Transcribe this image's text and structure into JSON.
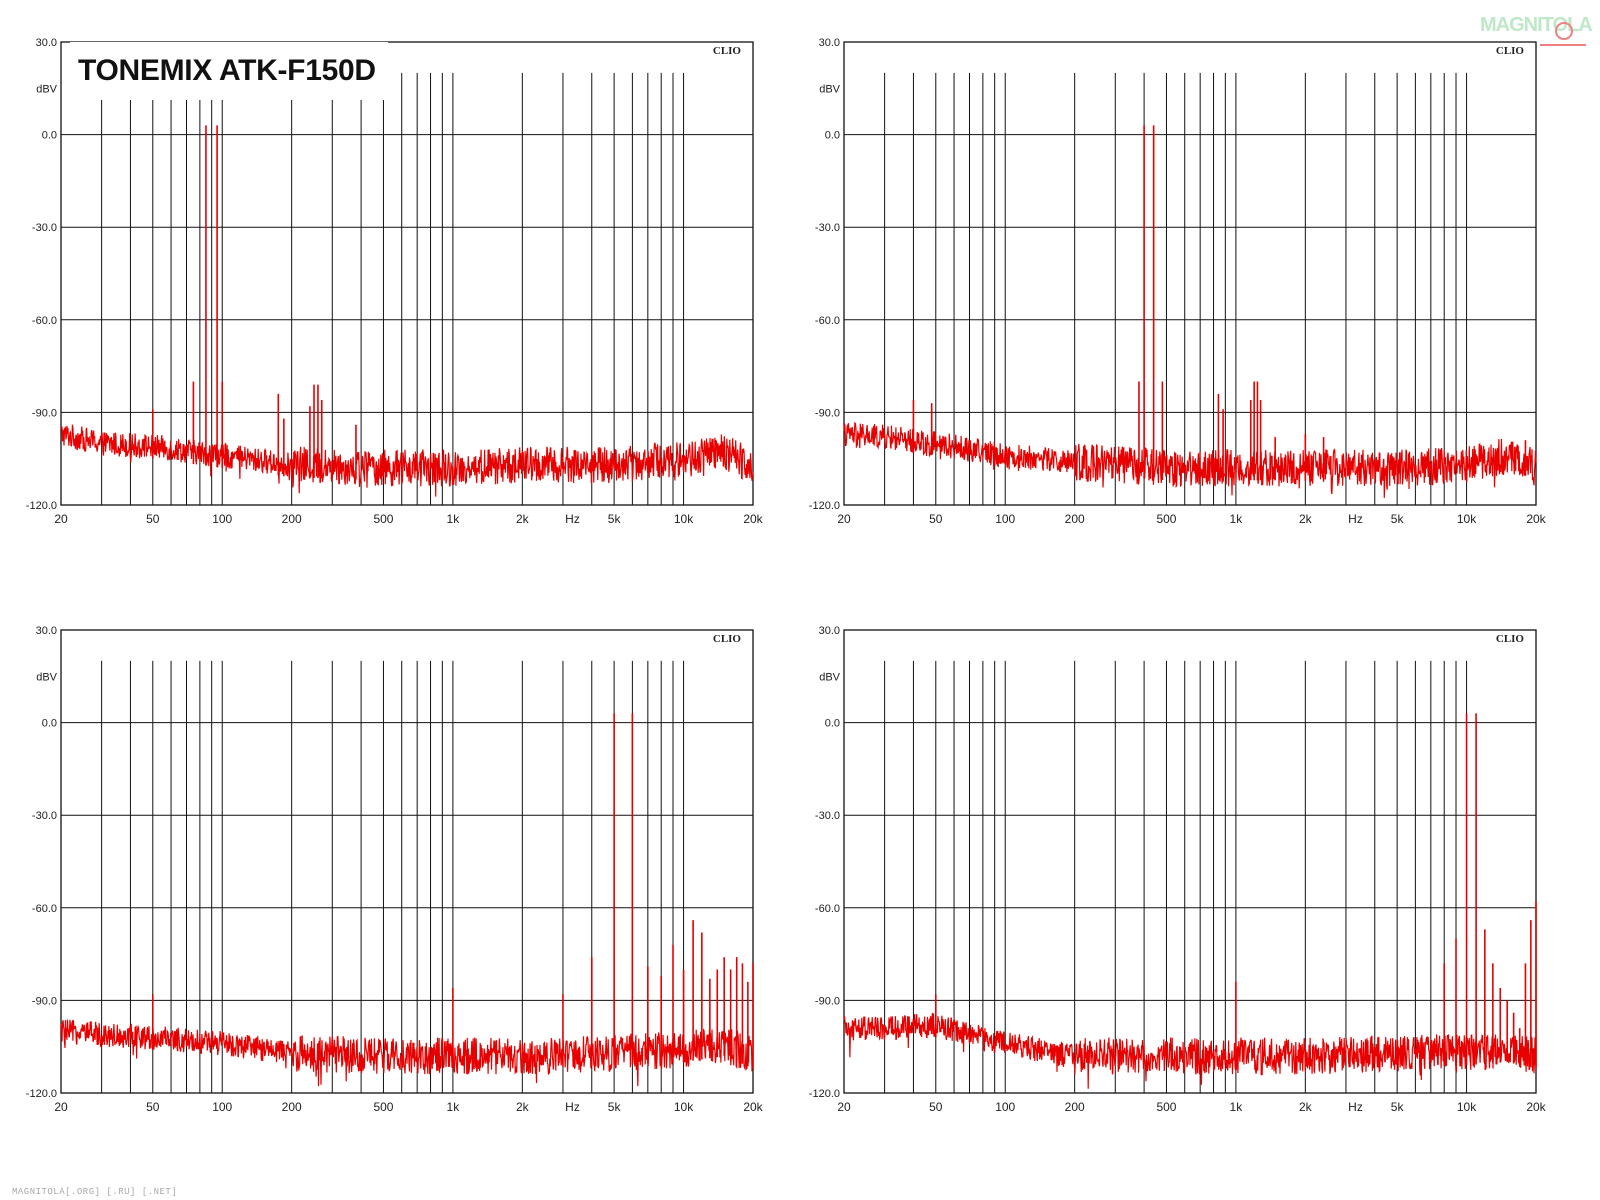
{
  "page": {
    "title": "TONEMIX ATK-F150D",
    "watermark": "MAGNITOLA",
    "footer": "MAGNITOLA[.ORG] [.RU] [.NET]"
  },
  "colors": {
    "trace": "#e80000",
    "grid": "#111111",
    "background": "#ffffff",
    "text": "#222222"
  },
  "chart_data": [
    {
      "type": "line",
      "panel": "top-left",
      "brand": "CLIO",
      "ylabel": "dBV",
      "xlabel": "Hz",
      "x_scale": "log",
      "xlim": [
        20,
        20000
      ],
      "ylim": [
        -120,
        30
      ],
      "y_ticks": [
        30,
        0,
        -30,
        -60,
        -90,
        -120
      ],
      "y_tick_labels": [
        "30.0",
        "0.0",
        "-30.0",
        "-60.0",
        "-90.0",
        "-120.0"
      ],
      "x_tick_labels": [
        "20",
        "50",
        "100",
        "200",
        "500",
        "1k",
        "2k",
        "Hz",
        "5k",
        "10k",
        "20k"
      ],
      "grid": true,
      "noise_floor": [
        [
          20,
          -97
        ],
        [
          30,
          -100
        ],
        [
          50,
          -101
        ],
        [
          100,
          -104
        ],
        [
          200,
          -107
        ],
        [
          500,
          -108
        ],
        [
          1000,
          -108
        ],
        [
          2000,
          -107
        ],
        [
          5000,
          -107
        ],
        [
          10000,
          -105
        ],
        [
          15000,
          -103
        ],
        [
          20000,
          -107
        ]
      ],
      "peaks": [
        [
          50,
          -89
        ],
        [
          75,
          -80
        ],
        [
          85,
          3
        ],
        [
          95,
          3
        ],
        [
          100,
          -80
        ],
        [
          175,
          -84
        ],
        [
          185,
          -92
        ],
        [
          240,
          -88
        ],
        [
          250,
          -81
        ],
        [
          260,
          -81
        ],
        [
          270,
          -86
        ],
        [
          380,
          -94
        ]
      ]
    },
    {
      "type": "line",
      "panel": "top-right",
      "brand": "CLIO",
      "ylabel": "dBV",
      "xlabel": "Hz",
      "x_scale": "log",
      "xlim": [
        20,
        20000
      ],
      "ylim": [
        -120,
        30
      ],
      "y_ticks": [
        30,
        0,
        -30,
        -60,
        -90,
        -120
      ],
      "y_tick_labels": [
        "30.0",
        "0.0",
        "-30.0",
        "-60.0",
        "-90.0",
        "-120.0"
      ],
      "x_tick_labels": [
        "20",
        "50",
        "100",
        "200",
        "500",
        "1k",
        "2k",
        "Hz",
        "5k",
        "10k",
        "20k"
      ],
      "grid": true,
      "noise_floor": [
        [
          20,
          -97
        ],
        [
          30,
          -98
        ],
        [
          50,
          -100
        ],
        [
          100,
          -104
        ],
        [
          200,
          -106
        ],
        [
          500,
          -108
        ],
        [
          1000,
          -108
        ],
        [
          2000,
          -108
        ],
        [
          5000,
          -108
        ],
        [
          10000,
          -107
        ],
        [
          15000,
          -104
        ],
        [
          20000,
          -108
        ]
      ],
      "peaks": [
        [
          40,
          -86
        ],
        [
          48,
          -87
        ],
        [
          380,
          -80
        ],
        [
          400,
          3
        ],
        [
          440,
          3
        ],
        [
          480,
          -80
        ],
        [
          840,
          -84
        ],
        [
          880,
          -89
        ],
        [
          1160,
          -86
        ],
        [
          1200,
          -80
        ],
        [
          1240,
          -80
        ],
        [
          1280,
          -86
        ],
        [
          1480,
          -98
        ],
        [
          2000,
          -97
        ],
        [
          2400,
          -98
        ],
        [
          18000,
          -99
        ]
      ]
    },
    {
      "type": "line",
      "panel": "bottom-left",
      "brand": "CLIO",
      "ylabel": "dBV",
      "xlabel": "Hz",
      "x_scale": "log",
      "xlim": [
        20,
        20000
      ],
      "ylim": [
        -120,
        30
      ],
      "y_ticks": [
        30,
        0,
        -30,
        -60,
        -90,
        -120
      ],
      "y_tick_labels": [
        "30.0",
        "0.0",
        "-30.0",
        "-60.0",
        "-90.0",
        "-120.0"
      ],
      "x_tick_labels": [
        "20",
        "50",
        "100",
        "200",
        "500",
        "1k",
        "2k",
        "Hz",
        "5k",
        "10k",
        "20k"
      ],
      "grid": true,
      "noise_floor": [
        [
          20,
          -100
        ],
        [
          30,
          -101
        ],
        [
          50,
          -102
        ],
        [
          100,
          -104
        ],
        [
          200,
          -107
        ],
        [
          500,
          -108
        ],
        [
          1000,
          -108
        ],
        [
          2000,
          -108
        ],
        [
          5000,
          -107
        ],
        [
          10000,
          -106
        ],
        [
          15000,
          -104
        ],
        [
          20000,
          -108
        ]
      ],
      "peaks": [
        [
          50,
          -88
        ],
        [
          1000,
          -86
        ],
        [
          3000,
          -88
        ],
        [
          4000,
          -76
        ],
        [
          5000,
          3
        ],
        [
          6000,
          3
        ],
        [
          7000,
          -79
        ],
        [
          8000,
          -82
        ],
        [
          9000,
          -72
        ],
        [
          10000,
          -80
        ],
        [
          11000,
          -64
        ],
        [
          12000,
          -68
        ],
        [
          13000,
          -83
        ],
        [
          14000,
          -80
        ],
        [
          15000,
          -76
        ],
        [
          16000,
          -80
        ],
        [
          17000,
          -76
        ],
        [
          18000,
          -78
        ],
        [
          19000,
          -84
        ],
        [
          20000,
          -78
        ]
      ]
    },
    {
      "type": "line",
      "panel": "bottom-right",
      "brand": "CLIO",
      "ylabel": "dBV",
      "xlabel": "Hz",
      "x_scale": "log",
      "xlim": [
        20,
        20000
      ],
      "ylim": [
        -120,
        30
      ],
      "y_ticks": [
        30,
        0,
        -30,
        -60,
        -90,
        -120
      ],
      "y_tick_labels": [
        "30.0",
        "0.0",
        "-30.0",
        "-60.0",
        "-90.0",
        "-120.0"
      ],
      "x_tick_labels": [
        "20",
        "50",
        "100",
        "200",
        "500",
        "1k",
        "2k",
        "Hz",
        "5k",
        "10k",
        "20k"
      ],
      "grid": true,
      "noise_floor": [
        [
          20,
          -99
        ],
        [
          30,
          -99
        ],
        [
          50,
          -98
        ],
        [
          100,
          -104
        ],
        [
          200,
          -108
        ],
        [
          500,
          -108
        ],
        [
          1000,
          -108
        ],
        [
          2000,
          -108
        ],
        [
          5000,
          -107
        ],
        [
          10000,
          -107
        ],
        [
          15000,
          -106
        ],
        [
          20000,
          -108
        ]
      ],
      "peaks": [
        [
          50,
          -88
        ],
        [
          1000,
          -84
        ],
        [
          8000,
          -78
        ],
        [
          9000,
          -70
        ],
        [
          10000,
          3
        ],
        [
          11000,
          3
        ],
        [
          12000,
          -67
        ],
        [
          13000,
          -78
        ],
        [
          14000,
          -86
        ],
        [
          15000,
          -90
        ],
        [
          16000,
          -94
        ],
        [
          17000,
          -99
        ],
        [
          18000,
          -78
        ],
        [
          19000,
          -64
        ],
        [
          20000,
          -58
        ]
      ]
    }
  ]
}
